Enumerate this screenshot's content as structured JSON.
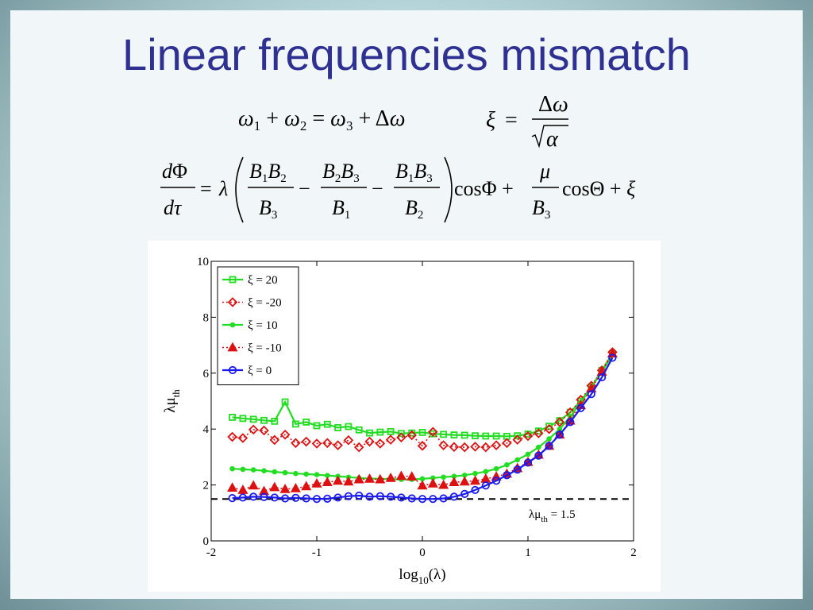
{
  "slide": {
    "title": "Linear frequencies mismatch",
    "equations": [
      "ω1 + ω2 = ω3 + Δω",
      "ξ = Δω / √α",
      "dΦ/dτ = λ( B1B2/B3 − B2B3/B1 − B1B3/B2 ) cosΦ + μ/B3 cosΘ + ξ"
    ]
  },
  "chart_data": {
    "type": "line",
    "title": "",
    "xlabel": "log10(λ)",
    "ylabel": "λμth",
    "xlim": [
      -2,
      2
    ],
    "ylim": [
      0,
      10
    ],
    "xticks": [
      -2,
      -1,
      0,
      1,
      2
    ],
    "yticks": [
      0,
      2,
      4,
      6,
      8,
      10
    ],
    "grid": false,
    "legend_position": "top-left",
    "reference_line": {
      "y": 1.5,
      "style": "dashed",
      "label": "λμth = 1.5"
    },
    "x": [
      -1.8,
      -1.7,
      -1.6,
      -1.5,
      -1.4,
      -1.3,
      -1.2,
      -1.1,
      -1.0,
      -0.9,
      -0.8,
      -0.7,
      -0.6,
      -0.5,
      -0.4,
      -0.3,
      -0.2,
      -0.1,
      0.0,
      0.1,
      0.2,
      0.3,
      0.4,
      0.5,
      0.6,
      0.7,
      0.8,
      0.9,
      1.0,
      1.1,
      1.2,
      1.3,
      1.4,
      1.5,
      1.6,
      1.7,
      1.8
    ],
    "series": [
      {
        "name": "ξ = 20",
        "color": "#22dd22",
        "marker": "square",
        "dash": "solid",
        "values": [
          4.42,
          4.38,
          4.35,
          4.31,
          4.28,
          4.97,
          4.18,
          4.25,
          4.12,
          4.17,
          4.05,
          4.09,
          3.97,
          3.86,
          3.89,
          3.91,
          3.84,
          3.86,
          3.88,
          3.83,
          3.81,
          3.79,
          3.78,
          3.76,
          3.75,
          3.75,
          3.74,
          3.76,
          3.82,
          3.93,
          4.1,
          4.3,
          4.6,
          5.0,
          5.5,
          6.1,
          6.7
        ]
      },
      {
        "name": "ξ = -20",
        "color": "#dd1111",
        "marker": "diamond",
        "dash": "dotted",
        "values": [
          3.72,
          3.68,
          3.98,
          3.95,
          3.61,
          3.8,
          3.5,
          3.55,
          3.48,
          3.5,
          3.42,
          3.6,
          3.35,
          3.55,
          3.48,
          3.62,
          3.7,
          3.78,
          3.4,
          3.9,
          3.42,
          3.36,
          3.35,
          3.37,
          3.35,
          3.42,
          3.5,
          3.62,
          3.75,
          3.85,
          4.0,
          4.25,
          4.6,
          5.05,
          5.55,
          6.1,
          6.75
        ]
      },
      {
        "name": "ξ = 10",
        "color": "#22dd22",
        "marker": "dot",
        "dash": "solid",
        "values": [
          2.58,
          2.56,
          2.54,
          2.51,
          2.47,
          2.44,
          2.41,
          2.39,
          2.37,
          2.34,
          2.31,
          2.28,
          2.25,
          2.23,
          2.22,
          2.21,
          2.2,
          2.2,
          2.22,
          2.25,
          2.28,
          2.31,
          2.35,
          2.41,
          2.48,
          2.58,
          2.72,
          2.9,
          3.1,
          3.35,
          3.65,
          4.0,
          4.45,
          4.95,
          5.5,
          6.05,
          6.65
        ]
      },
      {
        "name": "ξ = -10",
        "color": "#dd1111",
        "marker": "triangle",
        "dash": "dotted",
        "values": [
          1.9,
          1.82,
          1.98,
          1.78,
          1.92,
          1.85,
          1.88,
          1.95,
          2.05,
          2.1,
          2.15,
          2.12,
          2.2,
          2.22,
          2.2,
          2.25,
          2.32,
          2.3,
          1.98,
          2.05,
          2.0,
          2.1,
          2.12,
          2.15,
          2.22,
          2.3,
          2.4,
          2.6,
          2.82,
          3.08,
          3.4,
          3.8,
          4.3,
          4.85,
          5.45,
          6.05,
          6.7
        ]
      },
      {
        "name": "ξ = 0",
        "color": "#1a1aee",
        "marker": "circle",
        "dash": "solid",
        "values": [
          1.53,
          1.55,
          1.58,
          1.57,
          1.55,
          1.52,
          1.54,
          1.52,
          1.5,
          1.51,
          1.55,
          1.6,
          1.62,
          1.58,
          1.6,
          1.58,
          1.55,
          1.52,
          1.5,
          1.5,
          1.52,
          1.58,
          1.68,
          1.82,
          1.98,
          2.15,
          2.35,
          2.55,
          2.8,
          3.05,
          3.4,
          3.8,
          4.25,
          4.75,
          5.25,
          5.85,
          6.55
        ]
      }
    ]
  }
}
